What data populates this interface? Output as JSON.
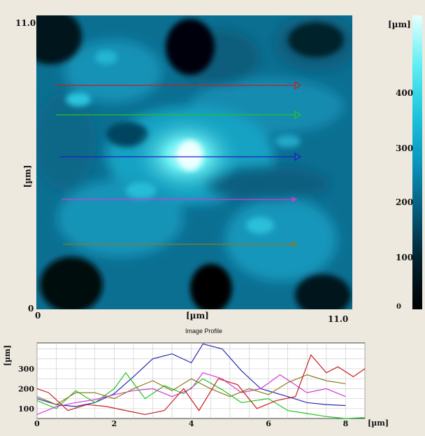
{
  "image": {
    "x_label": "[µm]",
    "y_label": "[µm]",
    "x_min_label": "0",
    "x_max_label": "11.0",
    "y_min_label": "0",
    "y_max_label": "11.0"
  },
  "colorbar": {
    "unit_label": "[µm]",
    "ticks": [
      "400",
      "300",
      "200",
      "100",
      "0"
    ],
    "colors": [
      "#000000",
      "#02202e",
      "#055a78",
      "#0a95bd",
      "#1ec6de",
      "#5feff4",
      "#e6ffff"
    ]
  },
  "profile_title": "Image Profile",
  "chart_data": {
    "type": "line",
    "title": "Image Profile",
    "xlabel": "[µm]",
    "ylabel": "[µm]",
    "xlim": [
      0,
      8.5
    ],
    "ylim": [
      50,
      430
    ],
    "x_ticks": [
      "0",
      "2",
      "4",
      "6",
      "8"
    ],
    "y_ticks": [
      "100",
      "200",
      "300"
    ],
    "grid": true,
    "series": [
      {
        "color": "#2a2ab0",
        "x": [
          0,
          0.5,
          1,
          1.5,
          2,
          2.5,
          3,
          3.5,
          4,
          4.3,
          4.8,
          5.3,
          5.8,
          6.5,
          7,
          7.5,
          8
        ],
        "y": [
          150,
          120,
          110,
          130,
          175,
          260,
          350,
          375,
          330,
          425,
          400,
          290,
          200,
          160,
          130,
          120,
          115
        ]
      },
      {
        "color": "#22c422",
        "x": [
          0,
          0.5,
          1,
          1.5,
          2,
          2.3,
          2.8,
          3.3,
          3.8,
          4.3,
          4.8,
          5.3,
          6,
          6.5,
          7,
          7.5,
          8,
          8.5
        ],
        "y": [
          140,
          100,
          190,
          130,
          200,
          280,
          150,
          215,
          175,
          250,
          195,
          130,
          150,
          90,
          75,
          60,
          50,
          55
        ]
      },
      {
        "color": "#d23cd2",
        "x": [
          0,
          0.5,
          1,
          1.5,
          2,
          2.5,
          3,
          3.5,
          4,
          4.3,
          4.8,
          5.3,
          5.8,
          6.3,
          7,
          7.5,
          8
        ],
        "y": [
          70,
          110,
          130,
          145,
          170,
          190,
          200,
          160,
          200,
          280,
          250,
          180,
          200,
          270,
          180,
          200,
          160
        ]
      },
      {
        "color": "#8a7a20",
        "x": [
          0,
          0.5,
          1,
          1.5,
          2,
          2.5,
          3,
          3.5,
          4,
          4.5,
          5,
          5.5,
          6,
          6.5,
          7,
          7.5,
          8
        ],
        "y": [
          160,
          120,
          180,
          180,
          150,
          200,
          240,
          190,
          250,
          200,
          160,
          200,
          170,
          230,
          270,
          240,
          225
        ]
      },
      {
        "color": "#c81e1e",
        "x": [
          0,
          0.3,
          0.8,
          1.3,
          1.8,
          2.3,
          2.8,
          3.3,
          3.8,
          4.2,
          4.7,
          5.2,
          5.7,
          6.2,
          6.7,
          7.1,
          7.5,
          7.8,
          8.2,
          8.5
        ],
        "y": [
          200,
          180,
          90,
          120,
          110,
          90,
          70,
          90,
          200,
          90,
          250,
          220,
          100,
          140,
          160,
          370,
          280,
          310,
          260,
          300
        ]
      }
    ]
  }
}
